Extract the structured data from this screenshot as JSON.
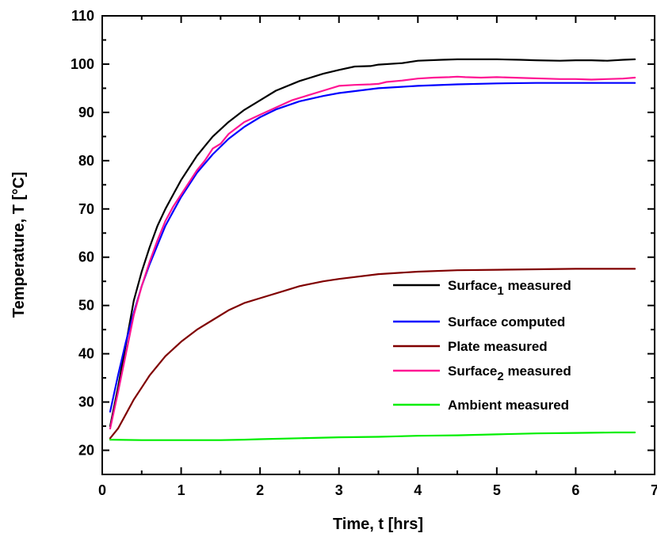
{
  "chart_data": {
    "type": "line",
    "xlabel": "Time, t [hrs]",
    "ylabel": "Temperature, T [°C]",
    "xlim": [
      0,
      7
    ],
    "ylim": [
      15,
      110
    ],
    "xticks": [
      0,
      1,
      2,
      3,
      4,
      5,
      6,
      7
    ],
    "yticks": [
      20,
      30,
      40,
      50,
      60,
      70,
      80,
      90,
      100,
      110
    ],
    "x_tick_labels": [
      "0",
      "1",
      "2",
      "3",
      "4",
      "5",
      "6",
      "7"
    ],
    "y_tick_labels": [
      "20",
      "30",
      "40",
      "50",
      "60",
      "70",
      "80",
      "90",
      "100",
      "110"
    ],
    "grid": false,
    "legend_position": "center-right",
    "series": [
      {
        "name": "Surface1 measured",
        "legend": {
          "main": "Surface",
          "sub": "1",
          "rest": " measured"
        },
        "color": "#000000",
        "x": [
          0.1,
          0.2,
          0.3,
          0.4,
          0.5,
          0.6,
          0.7,
          0.8,
          0.9,
          1.0,
          1.1,
          1.2,
          1.3,
          1.4,
          1.5,
          1.6,
          1.8,
          2.0,
          2.2,
          2.5,
          2.8,
          3.0,
          3.2,
          3.4,
          3.5,
          3.8,
          4.0,
          4.3,
          4.5,
          4.8,
          5.0,
          5.3,
          5.5,
          5.8,
          6.0,
          6.2,
          6.4,
          6.6,
          6.75
        ],
        "y": [
          25,
          33,
          42,
          51,
          57,
          62,
          66.5,
          70,
          73,
          76,
          78.5,
          81,
          83,
          85,
          86.5,
          88,
          90.5,
          92.5,
          94.5,
          96.5,
          98,
          98.8,
          99.5,
          99.6,
          99.9,
          100.2,
          100.7,
          100.9,
          101,
          101,
          101,
          100.9,
          100.8,
          100.7,
          100.8,
          100.8,
          100.7,
          100.9,
          101
        ]
      },
      {
        "name": "Surface computed",
        "legend": {
          "main": "Surface computed",
          "sub": "",
          "rest": ""
        },
        "color": "#0000ff",
        "x": [
          0.1,
          0.2,
          0.3,
          0.4,
          0.5,
          0.6,
          0.7,
          0.8,
          0.9,
          1.0,
          1.2,
          1.4,
          1.6,
          1.8,
          2.0,
          2.2,
          2.5,
          2.8,
          3.0,
          3.5,
          4.0,
          4.5,
          5.0,
          5.5,
          6.0,
          6.5,
          6.75
        ],
        "y": [
          28,
          35.5,
          42.5,
          48.5,
          54,
          58.5,
          62.5,
          66.5,
          69.5,
          72.5,
          77.5,
          81.3,
          84.5,
          87,
          89,
          90.6,
          92.3,
          93.4,
          94,
          95,
          95.5,
          95.8,
          96,
          96.1,
          96.1,
          96.1,
          96.1
        ]
      },
      {
        "name": "Plate measured",
        "legend": {
          "main": "Plate measured",
          "sub": "",
          "rest": ""
        },
        "color": "#800000",
        "x": [
          0.1,
          0.2,
          0.3,
          0.4,
          0.5,
          0.6,
          0.8,
          1.0,
          1.2,
          1.4,
          1.6,
          1.8,
          2.0,
          2.3,
          2.5,
          2.8,
          3.0,
          3.5,
          4.0,
          4.5,
          5.0,
          5.5,
          6.0,
          6.5,
          6.75
        ],
        "y": [
          22.5,
          24.5,
          27.5,
          30.5,
          33,
          35.5,
          39.5,
          42.5,
          45,
          47,
          49,
          50.5,
          51.5,
          53,
          54,
          55,
          55.5,
          56.5,
          57,
          57.3,
          57.4,
          57.5,
          57.6,
          57.6,
          57.6
        ]
      },
      {
        "name": "Surface2 measured",
        "legend": {
          "main": "Surface",
          "sub": "2",
          "rest": " measured"
        },
        "color": "#ff1493",
        "x": [
          0.1,
          0.2,
          0.3,
          0.4,
          0.5,
          0.6,
          0.7,
          0.8,
          0.9,
          1.0,
          1.1,
          1.2,
          1.3,
          1.4,
          1.5,
          1.6,
          1.8,
          2.0,
          2.2,
          2.4,
          2.6,
          2.8,
          3.0,
          3.2,
          3.4,
          3.5,
          3.6,
          3.8,
          4.0,
          4.2,
          4.4,
          4.5,
          4.6,
          4.8,
          5.0,
          5.2,
          5.4,
          5.6,
          5.8,
          6.0,
          6.2,
          6.4,
          6.6,
          6.75
        ],
        "y": [
          24.5,
          32,
          40,
          48,
          54,
          59,
          63.5,
          67.5,
          70.5,
          73,
          75.5,
          78,
          80,
          82.5,
          83.5,
          85.5,
          88,
          89.5,
          91,
          92.5,
          93.5,
          94.5,
          95.5,
          95.7,
          95.8,
          95.9,
          96.3,
          96.6,
          97,
          97.2,
          97.3,
          97.4,
          97.3,
          97.2,
          97.3,
          97.2,
          97.1,
          97,
          96.9,
          96.9,
          96.8,
          96.9,
          97,
          97.2
        ]
      },
      {
        "name": "Ambient measured",
        "legend": {
          "main": "Ambient measured",
          "sub": "",
          "rest": ""
        },
        "color": "#00ee00",
        "x": [
          0.1,
          0.5,
          1.0,
          1.5,
          1.8,
          2.0,
          2.5,
          3.0,
          3.5,
          4.0,
          4.5,
          5.0,
          5.5,
          6.0,
          6.5,
          6.75
        ],
        "y": [
          22.2,
          22.1,
          22.1,
          22.1,
          22.2,
          22.3,
          22.5,
          22.7,
          22.8,
          23,
          23.1,
          23.3,
          23.5,
          23.6,
          23.7,
          23.7
        ]
      }
    ]
  }
}
